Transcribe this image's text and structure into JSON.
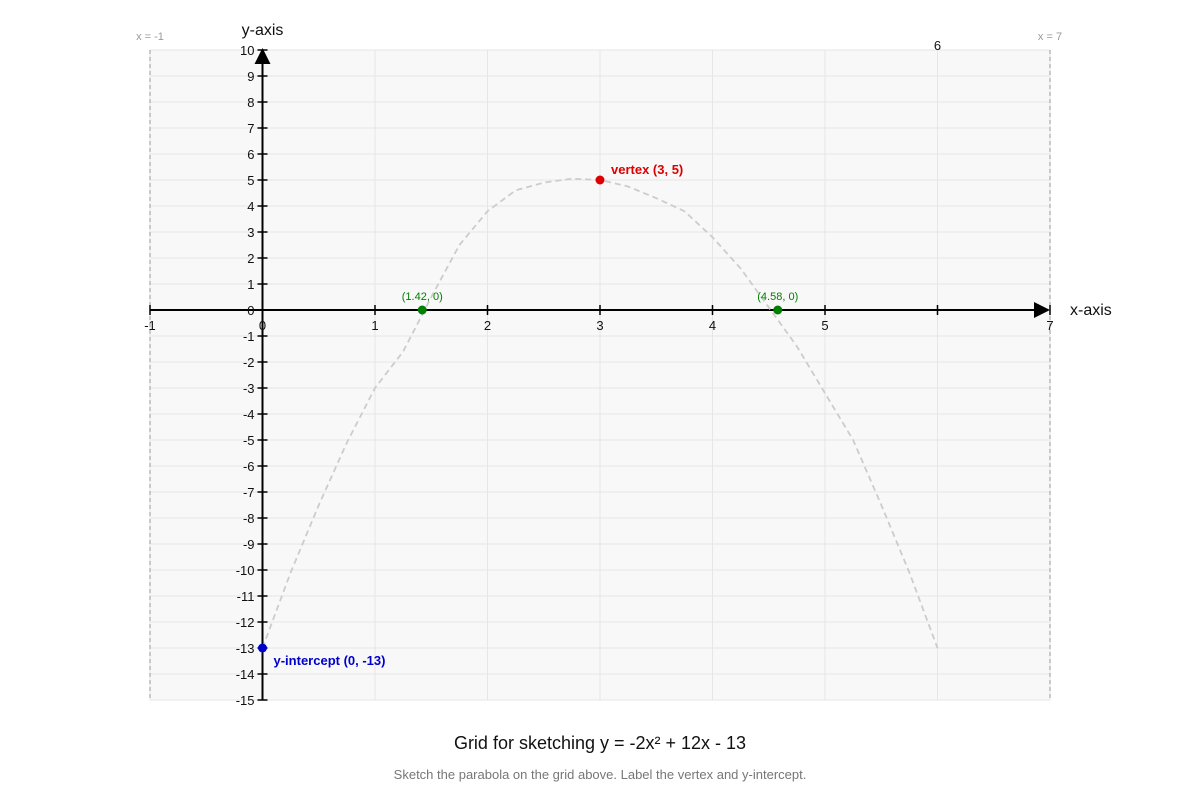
{
  "chart_data": {
    "type": "line",
    "title": "Grid for sketching y = -2x² + 12x - 13",
    "subtitle": "Sketch the parabola on the grid above. Label the vertex and y-intercept.",
    "xlabel": "x-axis",
    "ylabel": "y-axis",
    "xlim": [
      -1,
      7
    ],
    "ylim": [
      -15,
      10
    ],
    "grid": true,
    "x_ticks": [
      {
        "value": -1,
        "label": "-1"
      },
      {
        "value": 0,
        "label": "0"
      },
      {
        "value": 1,
        "label": "1"
      },
      {
        "value": 2,
        "label": "2"
      },
      {
        "value": 3,
        "label": "3"
      },
      {
        "value": 4,
        "label": "4"
      },
      {
        "value": 5,
        "label": "5"
      },
      {
        "value": 6,
        "label": "6"
      },
      {
        "value": 7,
        "label": "7"
      }
    ],
    "y_ticks": [
      {
        "value": 10,
        "label": "10"
      },
      {
        "value": 9,
        "label": "9"
      },
      {
        "value": 8,
        "label": "8"
      },
      {
        "value": 7,
        "label": "7"
      },
      {
        "value": 6,
        "label": "6"
      },
      {
        "value": 5,
        "label": "5"
      },
      {
        "value": 4,
        "label": "4"
      },
      {
        "value": 3,
        "label": "3"
      },
      {
        "value": 2,
        "label": "2"
      },
      {
        "value": 1,
        "label": "1"
      },
      {
        "value": 0,
        "label": "0"
      },
      {
        "value": -1,
        "label": "-1"
      },
      {
        "value": -2,
        "label": "-2"
      },
      {
        "value": -3,
        "label": "-3"
      },
      {
        "value": -4,
        "label": "-4"
      },
      {
        "value": -5,
        "label": "-5"
      },
      {
        "value": -6,
        "label": "-6"
      },
      {
        "value": -7,
        "label": "-7"
      },
      {
        "value": -8,
        "label": "-8"
      },
      {
        "value": -9,
        "label": "-9"
      },
      {
        "value": -10,
        "label": "-10"
      },
      {
        "value": -11,
        "label": "-11"
      },
      {
        "value": -12,
        "label": "-12"
      },
      {
        "value": -13,
        "label": "-13"
      },
      {
        "value": -14,
        "label": "-14"
      },
      {
        "value": -15,
        "label": "-15"
      }
    ],
    "boundaries": [
      {
        "x": -1,
        "label": "x = -1"
      },
      {
        "x": 7,
        "label": "x = 7"
      }
    ],
    "series": [
      {
        "style": "dashed",
        "color": "#cccccc",
        "x": [
          0,
          0.25,
          0.5,
          0.75,
          1,
          1.25,
          1.5,
          1.75,
          2,
          2.25,
          2.5,
          2.75,
          3,
          3.25,
          3.5,
          3.75,
          4,
          4.25,
          4.5,
          4.75,
          5,
          5.25,
          5.5,
          5.75,
          6
        ],
        "y": [
          -13,
          -10.1,
          -7.5,
          -5.1,
          -3,
          -1.6,
          0.5,
          2.5,
          3.8,
          4.6,
          4.9,
          5.05,
          5,
          4.75,
          4.3,
          3.8,
          2.8,
          1.6,
          0.1,
          -1.4,
          -3.2,
          -5,
          -7.5,
          -10.1,
          -13
        ]
      }
    ],
    "points": [
      {
        "x": 3,
        "y": 5,
        "label": "vertex (3, 5)",
        "color": "#dd0000",
        "bold": true
      },
      {
        "x": 0,
        "y": -13,
        "label": "y-intercept (0, -13)",
        "color": "#0000cc",
        "bold": true
      },
      {
        "x": 1.42,
        "y": 0,
        "label": "(1.42, 0)",
        "color": "#008000",
        "bold": false
      },
      {
        "x": 4.58,
        "y": 0,
        "label": "(4.58, 0)",
        "color": "#008000",
        "bold": false
      }
    ]
  }
}
